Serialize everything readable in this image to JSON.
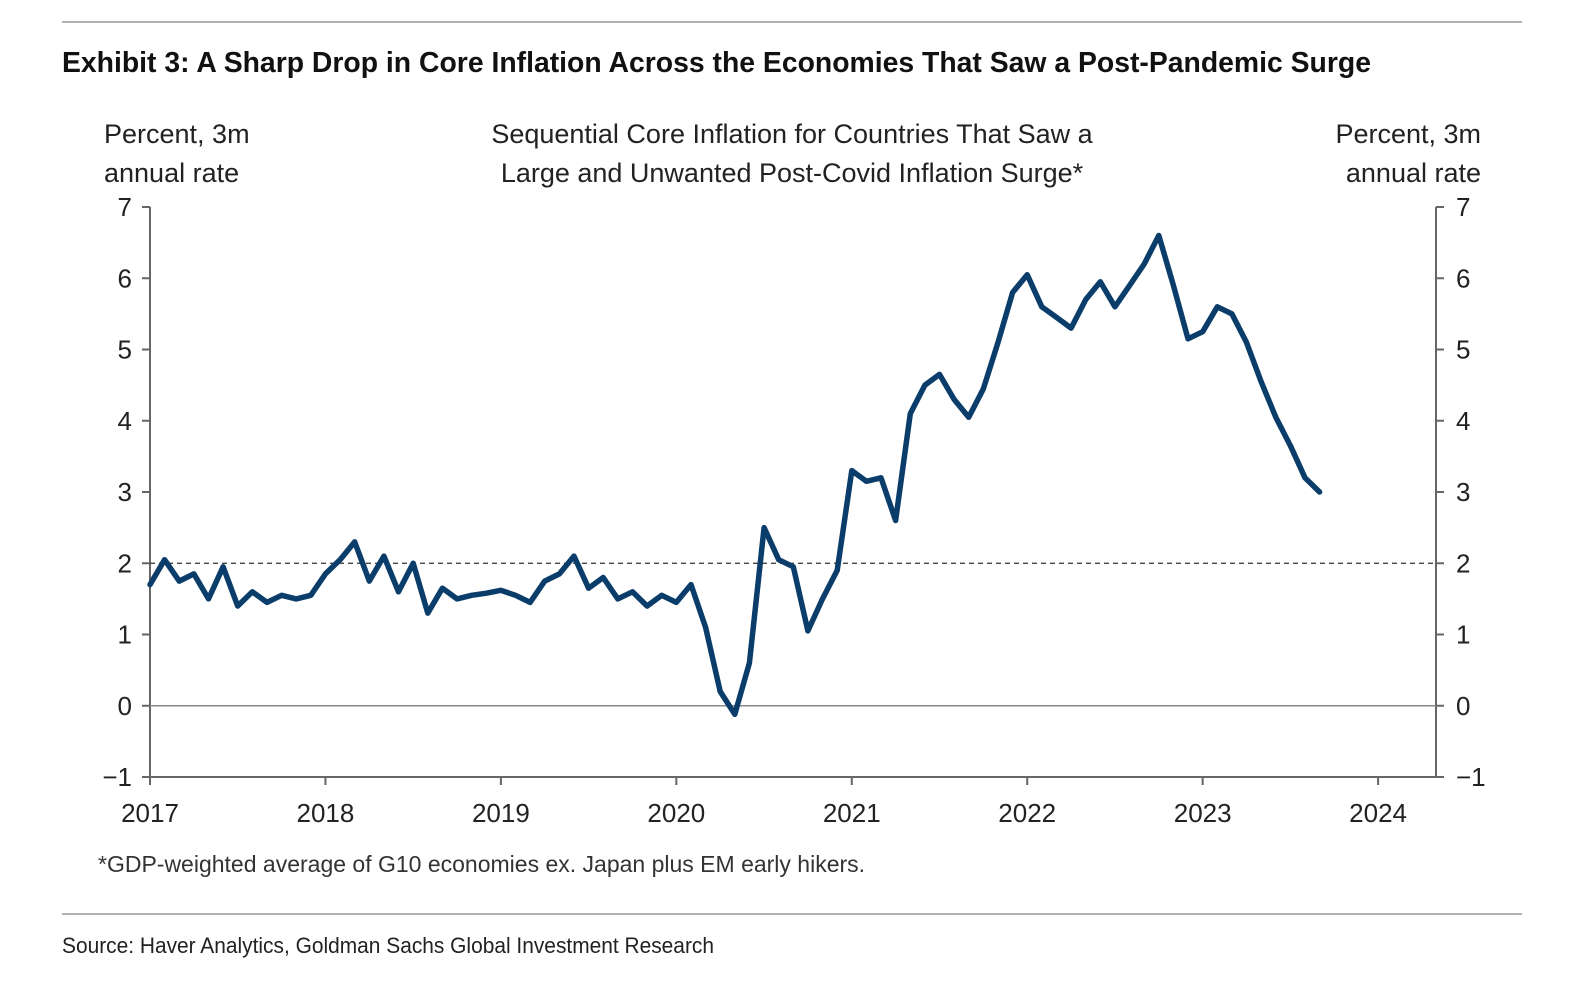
{
  "exhibit_title": "Exhibit 3: A Sharp Drop in Core Inflation Across the Economies That Saw a Post-Pandemic Surge",
  "footnote": "*GDP-weighted average of G10 economies ex. Japan plus EM early hikers.",
  "source": "Source: Haver Analytics, Goldman Sachs Global Investment Research",
  "colors": {
    "line": "#0b3d6b",
    "axis": "#666666",
    "text": "#222222"
  },
  "chart_data": {
    "type": "line",
    "title_lines": [
      "Sequential Core Inflation for Countries That Saw a",
      "Large and Unwanted Post-Covid Inflation Surge*"
    ],
    "ylabel_left": [
      "Percent, 3m",
      "annual rate"
    ],
    "ylabel_right": [
      "Percent, 3m",
      "annual rate"
    ],
    "ylim": [
      -1,
      7
    ],
    "xlim": [
      2017,
      2024.33
    ],
    "yticks": [
      "-1",
      "0",
      "1",
      "2",
      "3",
      "4",
      "5",
      "6",
      "7"
    ],
    "xticks": [
      "2017",
      "2018",
      "2019",
      "2020",
      "2021",
      "2022",
      "2023",
      "2024"
    ],
    "reference_line": 2,
    "zero_line": 0,
    "grid": false,
    "series": [
      {
        "name": "Sequential core inflation",
        "start": "2017-01",
        "frequency": "monthly",
        "values": [
          1.7,
          2.05,
          1.75,
          1.85,
          1.5,
          1.95,
          1.4,
          1.6,
          1.45,
          1.55,
          1.5,
          1.55,
          1.85,
          2.05,
          2.3,
          1.75,
          2.1,
          1.6,
          2.0,
          1.3,
          1.65,
          1.5,
          1.55,
          1.58,
          1.62,
          1.55,
          1.45,
          1.75,
          1.85,
          2.1,
          1.65,
          1.8,
          1.5,
          1.6,
          1.4,
          1.55,
          1.45,
          1.7,
          1.1,
          0.2,
          -0.12,
          0.6,
          2.5,
          2.05,
          1.95,
          1.05,
          1.5,
          1.9,
          3.3,
          3.15,
          3.2,
          2.6,
          4.1,
          4.5,
          4.65,
          4.3,
          4.05,
          4.45,
          5.1,
          5.8,
          6.05,
          5.6,
          5.45,
          5.3,
          5.7,
          5.95,
          5.6,
          5.9,
          6.2,
          6.6,
          5.9,
          5.15,
          5.25,
          5.6,
          5.5,
          5.1,
          4.55,
          4.05,
          3.65,
          3.2,
          3.0
        ]
      }
    ]
  }
}
